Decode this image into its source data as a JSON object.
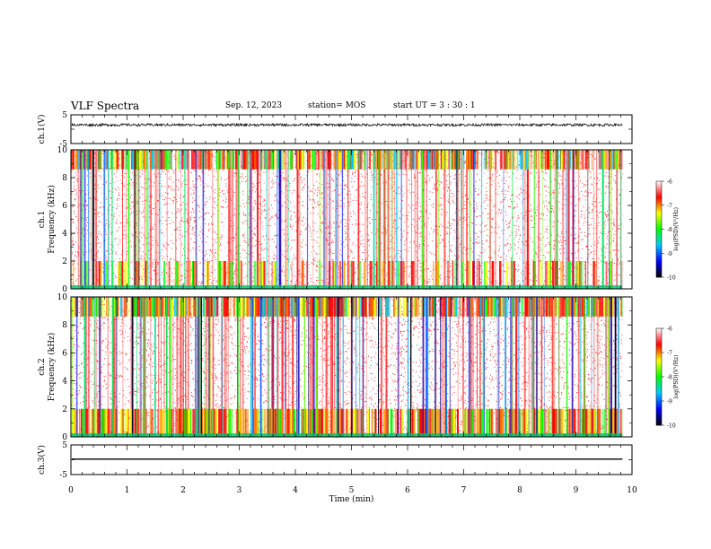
{
  "header": {
    "title": "VLF Spectra",
    "date": "Sep. 12, 2023",
    "station": "station= MOS",
    "start": "start  UT =  3 : 30 : 1"
  },
  "chart_data": [
    {
      "type": "line",
      "id": "ch1-waveform",
      "ylabel": "ch.1(V)",
      "ylim": [
        -5,
        5
      ],
      "yticks": [
        "5",
        "-5"
      ],
      "series": [
        {
          "values_description_level": 1.5
        }
      ]
    },
    {
      "type": "heatmap",
      "id": "ch1-spectrogram",
      "ylabel_line1": "ch.1",
      "ylabel_line2": "Frequency (kHz)",
      "ylim": [
        0,
        10
      ],
      "yticks": [
        "0",
        "2",
        "4",
        "6",
        "8",
        "10"
      ],
      "colorbar": {
        "label": "log(PSD)(V²/Hz)",
        "range": [
          -10,
          -6
        ],
        "ticks": [
          "-6",
          "-7",
          "-8",
          "-9",
          "-10"
        ]
      }
    },
    {
      "type": "heatmap",
      "id": "ch2-spectrogram",
      "ylabel_line1": "ch.2",
      "ylabel_line2": "Frequency (kHz)",
      "ylim": [
        0,
        10
      ],
      "yticks": [
        "0",
        "2",
        "4",
        "6",
        "8",
        "10"
      ],
      "colorbar": {
        "label": "log(PSD)(V²/Hz)",
        "range": [
          -10,
          -6
        ],
        "ticks": [
          "-6",
          "-7",
          "-8",
          "-9",
          "-10"
        ]
      }
    },
    {
      "type": "line",
      "id": "ch3-waveform",
      "ylabel": "ch.3(V)",
      "ylim": [
        -5,
        5
      ],
      "yticks": [
        "5",
        "-5"
      ],
      "series": [
        {
          "level": 0.2
        }
      ]
    }
  ],
  "xaxis": {
    "label": "Time  (min)",
    "range": [
      0,
      10
    ],
    "ticks": [
      "0",
      "1",
      "2",
      "3",
      "4",
      "5",
      "6",
      "7",
      "8",
      "9",
      "10"
    ],
    "data_end": 9.83
  },
  "colors": {
    "colormap": [
      "#000000",
      "#0000ff",
      "#00c8ff",
      "#00ff00",
      "#ffff00",
      "#ff0000",
      "#ffffff"
    ]
  }
}
